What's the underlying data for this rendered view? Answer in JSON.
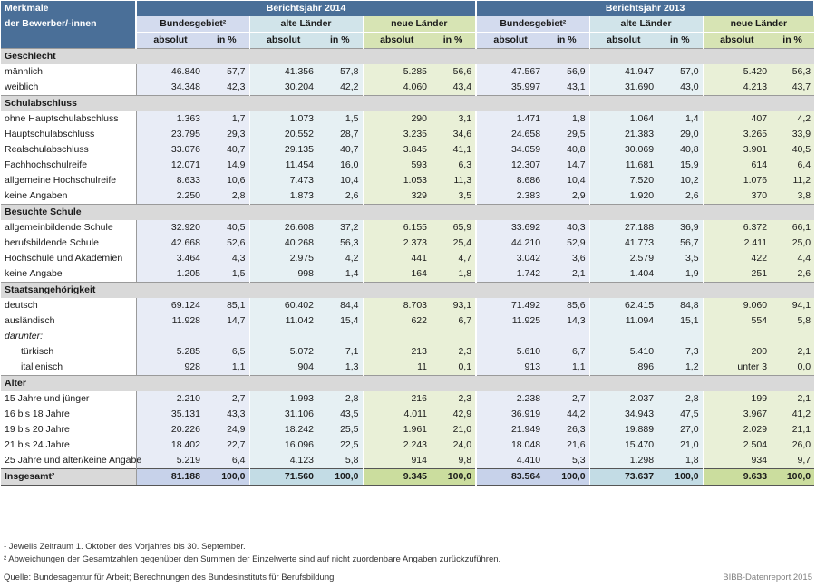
{
  "header": {
    "row_label": "Merkmale der Bewerber/-innen",
    "row_label_line1": "Merkmale",
    "row_label_line2": "der Bewerber/-innen",
    "years": [
      "Berichtsjahr 2014",
      "Berichtsjahr 2013"
    ],
    "groups": [
      "Bundesgebiet²",
      "alte Länder",
      "neue Länder"
    ],
    "subs": [
      "absolut",
      "in %"
    ]
  },
  "sections": [
    {
      "title": "Geschlecht",
      "rows": [
        {
          "label": "männlich",
          "v": [
            "46.840",
            "57,7",
            "41.356",
            "57,8",
            "5.285",
            "56,6",
            "47.567",
            "56,9",
            "41.947",
            "57,0",
            "5.420",
            "56,3"
          ]
        },
        {
          "label": "weiblich",
          "v": [
            "34.348",
            "42,3",
            "30.204",
            "42,2",
            "4.060",
            "43,4",
            "35.997",
            "43,1",
            "31.690",
            "43,0",
            "4.213",
            "43,7"
          ]
        }
      ]
    },
    {
      "title": "Schulabschluss",
      "rows": [
        {
          "label": "ohne Hauptschulabschluss",
          "v": [
            "1.363",
            "1,7",
            "1.073",
            "1,5",
            "290",
            "3,1",
            "1.471",
            "1,8",
            "1.064",
            "1,4",
            "407",
            "4,2"
          ]
        },
        {
          "label": "Hauptschulabschluss",
          "v": [
            "23.795",
            "29,3",
            "20.552",
            "28,7",
            "3.235",
            "34,6",
            "24.658",
            "29,5",
            "21.383",
            "29,0",
            "3.265",
            "33,9"
          ]
        },
        {
          "label": "Realschulabschluss",
          "v": [
            "33.076",
            "40,7",
            "29.135",
            "40,7",
            "3.845",
            "41,1",
            "34.059",
            "40,8",
            "30.069",
            "40,8",
            "3.901",
            "40,5"
          ]
        },
        {
          "label": "Fachhochschulreife",
          "v": [
            "12.071",
            "14,9",
            "11.454",
            "16,0",
            "593",
            "6,3",
            "12.307",
            "14,7",
            "11.681",
            "15,9",
            "614",
            "6,4"
          ]
        },
        {
          "label": "allgemeine Hochschulreife",
          "v": [
            "8.633",
            "10,6",
            "7.473",
            "10,4",
            "1.053",
            "11,3",
            "8.686",
            "10,4",
            "7.520",
            "10,2",
            "1.076",
            "11,2"
          ]
        },
        {
          "label": "keine Angaben",
          "v": [
            "2.250",
            "2,8",
            "1.873",
            "2,6",
            "329",
            "3,5",
            "2.383",
            "2,9",
            "1.920",
            "2,6",
            "370",
            "3,8"
          ]
        }
      ]
    },
    {
      "title": "Besuchte Schule",
      "rows": [
        {
          "label": "allgemeinbildende Schule",
          "v": [
            "32.920",
            "40,5",
            "26.608",
            "37,2",
            "6.155",
            "65,9",
            "33.692",
            "40,3",
            "27.188",
            "36,9",
            "6.372",
            "66,1"
          ]
        },
        {
          "label": "berufsbildende Schule",
          "v": [
            "42.668",
            "52,6",
            "40.268",
            "56,3",
            "2.373",
            "25,4",
            "44.210",
            "52,9",
            "41.773",
            "56,7",
            "2.411",
            "25,0"
          ]
        },
        {
          "label": "Hochschule und Akademien",
          "v": [
            "3.464",
            "4,3",
            "2.975",
            "4,2",
            "441",
            "4,7",
            "3.042",
            "3,6",
            "2.579",
            "3,5",
            "422",
            "4,4"
          ]
        },
        {
          "label": "keine Angabe",
          "v": [
            "1.205",
            "1,5",
            "998",
            "1,4",
            "164",
            "1,8",
            "1.742",
            "2,1",
            "1.404",
            "1,9",
            "251",
            "2,6"
          ]
        }
      ]
    },
    {
      "title": "Staatsangehörigkeit",
      "rows": [
        {
          "label": "deutsch",
          "v": [
            "69.124",
            "85,1",
            "60.402",
            "84,4",
            "8.703",
            "93,1",
            "71.492",
            "85,6",
            "62.415",
            "84,8",
            "9.060",
            "94,1"
          ]
        },
        {
          "label": "ausländisch",
          "v": [
            "11.928",
            "14,7",
            "11.042",
            "15,4",
            "622",
            "6,7",
            "11.925",
            "14,3",
            "11.094",
            "15,1",
            "554",
            "5,8"
          ]
        },
        {
          "label": "darunter:",
          "v": [
            "",
            "",
            "",
            "",
            "",
            "",
            "",
            "",
            "",
            "",
            "",
            ""
          ]
        },
        {
          "label": "türkisch",
          "v": [
            "5.285",
            "6,5",
            "5.072",
            "7,1",
            "213",
            "2,3",
            "5.610",
            "6,7",
            "5.410",
            "7,3",
            "200",
            "2,1"
          ]
        },
        {
          "label": "italienisch",
          "v": [
            "928",
            "1,1",
            "904",
            "1,3",
            "11",
            "0,1",
            "913",
            "1,1",
            "896",
            "1,2",
            "unter 3",
            "0,0"
          ]
        }
      ]
    },
    {
      "title": "Alter",
      "rows": [
        {
          "label": "15 Jahre und jünger",
          "v": [
            "2.210",
            "2,7",
            "1.993",
            "2,8",
            "216",
            "2,3",
            "2.238",
            "2,7",
            "2.037",
            "2,8",
            "199",
            "2,1"
          ]
        },
        {
          "label": "16 bis 18 Jahre",
          "v": [
            "35.131",
            "43,3",
            "31.106",
            "43,5",
            "4.011",
            "42,9",
            "36.919",
            "44,2",
            "34.943",
            "47,5",
            "3.967",
            "41,2"
          ]
        },
        {
          "label": "19 bis 20 Jahre",
          "v": [
            "20.226",
            "24,9",
            "18.242",
            "25,5",
            "1.961",
            "21,0",
            "21.949",
            "26,3",
            "19.889",
            "27,0",
            "2.029",
            "21,1"
          ]
        },
        {
          "label": "21 bis 24 Jahre",
          "v": [
            "18.402",
            "22,7",
            "16.096",
            "22,5",
            "2.243",
            "24,0",
            "18.048",
            "21,6",
            "15.470",
            "21,0",
            "2.504",
            "26,0"
          ]
        },
        {
          "label": "25 Jahre und älter/keine Angabe",
          "v": [
            "5.219",
            "6,4",
            "4.123",
            "5,8",
            "914",
            "9,8",
            "4.410",
            "5,3",
            "1.298",
            "1,8",
            "934",
            "9,7"
          ]
        }
      ]
    }
  ],
  "total": {
    "label": "Insgesamt²",
    "v": [
      "81.188",
      "100,0",
      "71.560",
      "100,0",
      "9.345",
      "100,0",
      "83.564",
      "100,0",
      "73.637",
      "100,0",
      "9.633",
      "100,0"
    ]
  },
  "footnotes": [
    "¹ Jeweils Zeitraum 1. Oktober des Vorjahres bis 30. September.",
    "² Abweichungen der Gesamtzahlen gegenüber den Summen der Einzelwerte sind auf nicht zuordenbare Angaben zurückzuführen.",
    "Quelle: Bundesagentur für Arbeit; Berechnungen des Bundesinstituts für Berufsbildung"
  ],
  "brand": "BIBB-Datenreport 2015"
}
